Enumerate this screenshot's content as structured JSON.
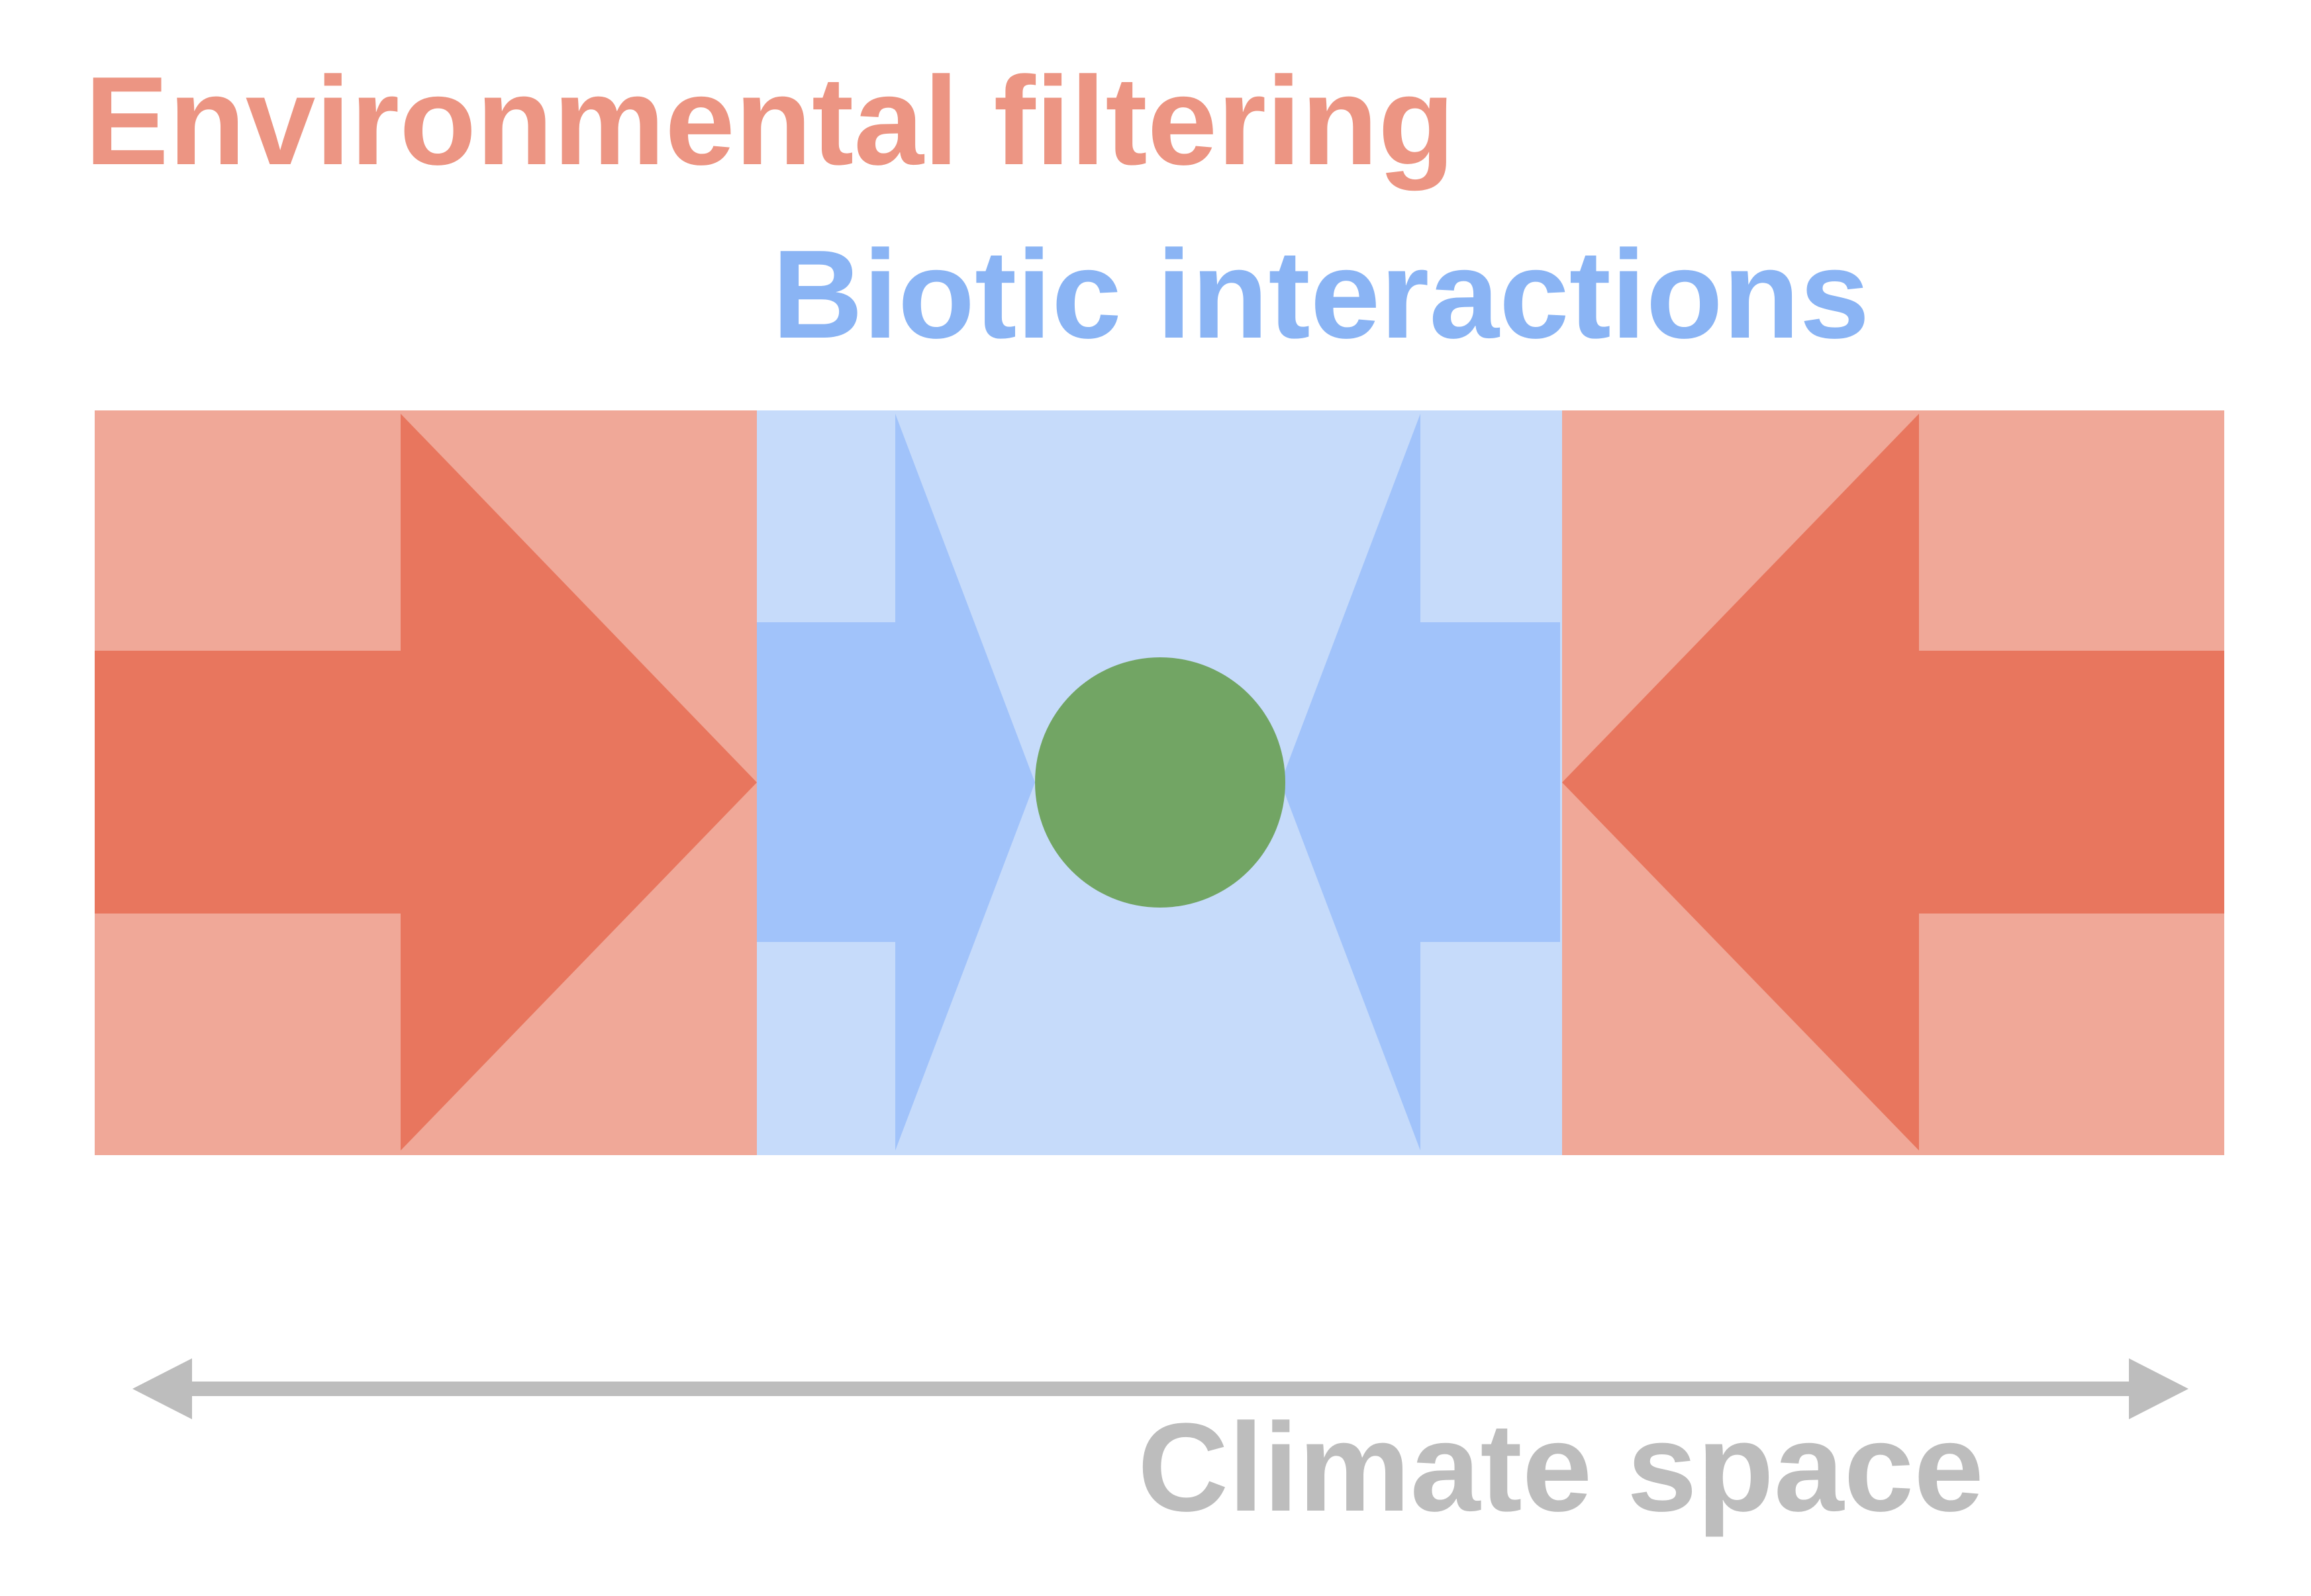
{
  "labels": {
    "environmental": "Environmental filtering",
    "biotic": "Biotic interactions",
    "axis": "Climate space"
  },
  "colors": {
    "environmental_text": "#ec9583",
    "environmental_zone": "#f0a898",
    "environmental_arrow": "#e8765e",
    "biotic_text": "#8ab4f4",
    "biotic_zone": "#c6dbfa",
    "biotic_arrow": "#a1c3fa",
    "niche_circle": "#72a564",
    "axis": "#bdbdbd"
  }
}
